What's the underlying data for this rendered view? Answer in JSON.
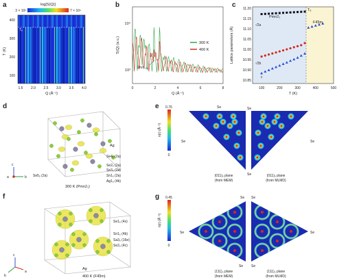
{
  "panels": {
    "a": {
      "label": "a",
      "colorbar_title": "log[S(Q)]",
      "colorbar_min": "3 × 10²",
      "colorbar_max": "7 × 10⁴",
      "ylabel": "T (K)",
      "xlabel": "Q (Å⁻¹)",
      "annotation": "Tₑ",
      "yticks": [
        "400",
        "300",
        "200",
        "100"
      ],
      "xticks": [
        "1.5",
        "2.0",
        "2.5",
        "3.0",
        "3.5",
        "4.0"
      ]
    },
    "b": {
      "label": "b",
      "ylabel": "S(Q) (a.u.)",
      "xlabel": "Q (Å⁻¹)",
      "yticks": [
        "10⁴",
        "10³"
      ],
      "xticks": [
        "0",
        "2",
        "4",
        "6",
        "8"
      ],
      "annotation": "2π/d₀₀₁",
      "legend": [
        {
          "label": "300 K",
          "color": "#2aa84a"
        },
        {
          "label": "400 K",
          "color": "#d42a1f"
        }
      ]
    },
    "c": {
      "label": "c",
      "ylabel": "Lattice parameters (Å)",
      "xlabel": "T (K)",
      "yticks": [
        "11.20",
        "11.15",
        "11.10",
        "11.05",
        "11.00",
        "10.95",
        "10.90",
        "10.85"
      ],
      "xticks": [
        "100",
        "200",
        "300",
        "400",
        "500"
      ],
      "phase_low": "Pmn2₁",
      "phase_high": "F4̄3m",
      "tc_label": "Tₑ",
      "series_labels": [
        "√2a",
        "√2b",
        "c"
      ]
    },
    "d": {
      "label": "d",
      "caption": "300 K (Pmn2₁)",
      "atoms": [
        "Ag",
        "Se4ₒ (2a)",
        "Se2ₒ (2a)",
        "Se3ₒ (2a)",
        "Sn1ₒ (2a)",
        "Ag1ₒ (4b)",
        "Se5ₒ (2a)"
      ],
      "axes": [
        "c",
        "a",
        "b"
      ]
    },
    "e": {
      "label": "e",
      "colorbar_top": "0.76",
      "colorbar_bottom": "0",
      "ylabel": "n(r) (Å⁻³)",
      "corner": "Se",
      "left_caption_1": "(011)ₒ plane",
      "left_caption_2": "(from MEM)",
      "right_caption_1": "(011)ₒ plane",
      "right_caption_2": "(from MLMD)"
    },
    "f": {
      "label": "f",
      "caption": "400 K (F4̄3m)",
      "atoms": [
        "Se1ₒ (4x)",
        "Sn1ₒ (4b)",
        "Sa3ₒ (16e)",
        "Se2ₒ (4c)",
        "Ag"
      ],
      "axes": [
        "c",
        "b",
        "a"
      ]
    },
    "g": {
      "label": "g",
      "colorbar_top": "0.45",
      "colorbar_bottom": "0",
      "ylabel": "n(r) (Å⁻³)",
      "corner": "Se",
      "left_caption_1": "(111)ₒ plane",
      "left_caption_2": "(from MEM)",
      "right_caption_1": "(111)ₒ plane",
      "right_caption_2": "(from MLMD)"
    }
  },
  "chart_data": [
    {
      "type": "line",
      "panel": "b",
      "xlabel": "Q (Å⁻¹)",
      "ylabel": "S(Q) (a.u.)",
      "xlim": [
        0,
        8
      ],
      "series": [
        {
          "name": "300 K",
          "color": "#2aa84a"
        },
        {
          "name": "400 K",
          "color": "#d42a1f"
        }
      ]
    },
    {
      "type": "scatter",
      "panel": "c",
      "xlabel": "T (K)",
      "ylabel": "Lattice parameters (Å)",
      "xlim": [
        50,
        500
      ],
      "ylim": [
        10.85,
        11.22
      ],
      "series": [
        {
          "name": "√2a",
          "color": "#111111",
          "x": [
            100,
            120,
            140,
            160,
            180,
            200,
            220,
            240,
            260,
            280,
            300,
            320,
            340
          ],
          "y": [
            11.185,
            11.186,
            11.187,
            11.188,
            11.189,
            11.19,
            11.191,
            11.192,
            11.193,
            11.194,
            11.195,
            11.196,
            11.197
          ]
        },
        {
          "name": "√2b",
          "color": "#d42a1f",
          "x": [
            100,
            120,
            140,
            160,
            180,
            200,
            220,
            240,
            260,
            280,
            300,
            320,
            340
          ],
          "y": [
            10.98,
            10.985,
            10.99,
            10.995,
            11.0,
            11.005,
            11.01,
            11.015,
            11.02,
            11.025,
            11.03,
            11.035,
            11.045
          ]
        },
        {
          "name": "c",
          "color": "#2a4fd4",
          "x": [
            100,
            120,
            140,
            160,
            180,
            200,
            220,
            240,
            260,
            280,
            300,
            320,
            340
          ],
          "y": [
            10.9,
            10.908,
            10.915,
            10.923,
            10.93,
            10.937,
            10.945,
            10.952,
            10.96,
            10.967,
            10.975,
            10.985,
            10.995
          ]
        },
        {
          "name": "F-43m",
          "color": "#2a4fd4",
          "x": [
            360,
            380,
            400,
            420,
            440
          ],
          "y": [
            11.12,
            11.125,
            11.13,
            11.135,
            11.14
          ]
        }
      ]
    }
  ]
}
